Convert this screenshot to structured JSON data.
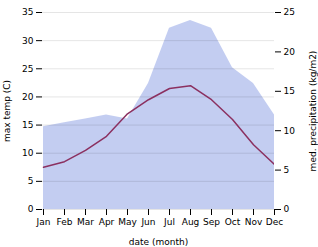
{
  "chart_data": {
    "type": "line",
    "xlabel": "date (month)",
    "ylabel": "max temp (C)",
    "y2label": "med. precipitation (kg/m2)",
    "categories": [
      "Jan",
      "Feb",
      "Mar",
      "Apr",
      "May",
      "Jun",
      "Jul",
      "Aug",
      "Sep",
      "Oct",
      "Nov",
      "Dec"
    ],
    "series": [
      {
        "type": "area",
        "axis": "y2",
        "color": "#b8c4ee",
        "values": [
          10.5,
          11.0,
          11.5,
          12.0,
          11.5,
          16.0,
          23.0,
          24.0,
          23.0,
          18.0,
          16.0,
          12.0
        ]
      },
      {
        "type": "line",
        "color": "#8b3060",
        "values": [
          7.5,
          8.5,
          10.5,
          13.0,
          17.0,
          19.5,
          21.5,
          22.0,
          19.5,
          16.0,
          11.5,
          8.0
        ]
      }
    ],
    "ylim": [
      0,
      35
    ],
    "yticks": [
      0,
      5,
      10,
      15,
      20,
      25,
      30,
      35
    ],
    "y2lim": [
      0,
      25
    ],
    "y2ticks": [
      0,
      5,
      10,
      15,
      20,
      25
    ],
    "grid": true
  }
}
